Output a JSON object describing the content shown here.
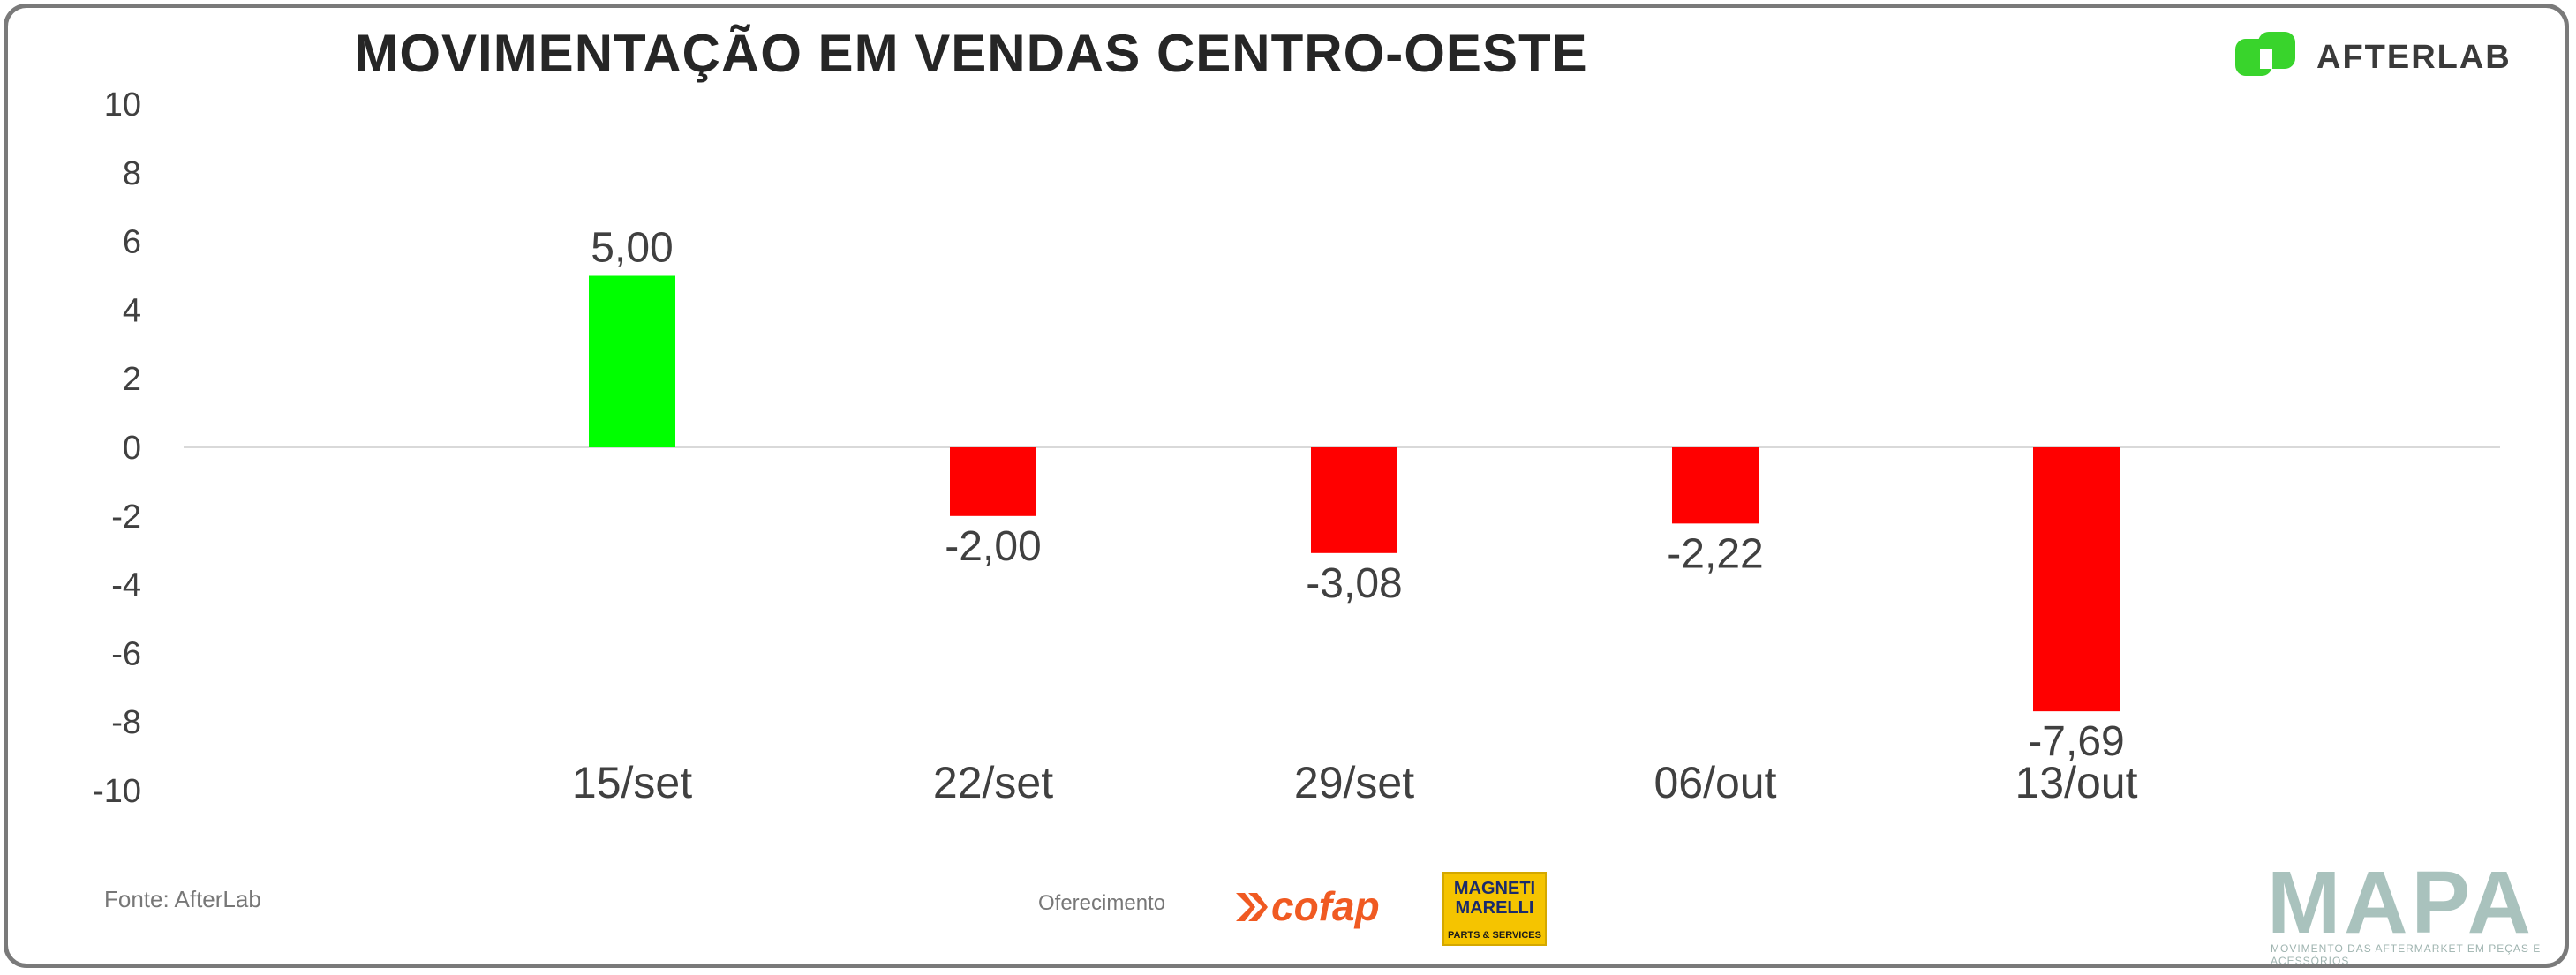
{
  "header": {
    "title": "MOVIMENTAÇÃO EM VENDAS CENTRO-OESTE",
    "logo_text": "AFTERLAB"
  },
  "chart_data": {
    "type": "bar",
    "title": "MOVIMENTAÇÃO EM VENDAS CENTRO-OESTE",
    "categories": [
      "15/set",
      "22/set",
      "29/set",
      "06/out",
      "13/out"
    ],
    "values": [
      5.0,
      -2.0,
      -3.08,
      -2.22,
      -7.69
    ],
    "data_labels": [
      "5,00",
      "-2,00",
      "-3,08",
      "-2,22",
      "-7,69"
    ],
    "ylim": [
      -10,
      10
    ],
    "yticks": [
      "10",
      "8",
      "6",
      "4",
      "2",
      "0",
      "-2",
      "-4",
      "-6",
      "-8",
      "-10"
    ],
    "ytick_values": [
      10,
      8,
      6,
      4,
      2,
      0,
      -2,
      -4,
      -6,
      -8,
      -10
    ],
    "colors": {
      "positive": "#00ff00",
      "negative": "#ff0000",
      "zero_line": "#d9d9d9"
    },
    "grid": false,
    "legend": "none"
  },
  "footer": {
    "source": "Fonte: AfterLab",
    "support_label": "Oferecimento",
    "sponsor_1": "cofap",
    "sponsor_2_top": "MAGNETI MARELLI",
    "sponsor_2_bottom": "PARTS & SERVICES",
    "brand": "MAPA",
    "brand_sub": "MOVIMENTO DAS AFTERMARKET EM PEÇAS E ACESSÓRIOS"
  }
}
